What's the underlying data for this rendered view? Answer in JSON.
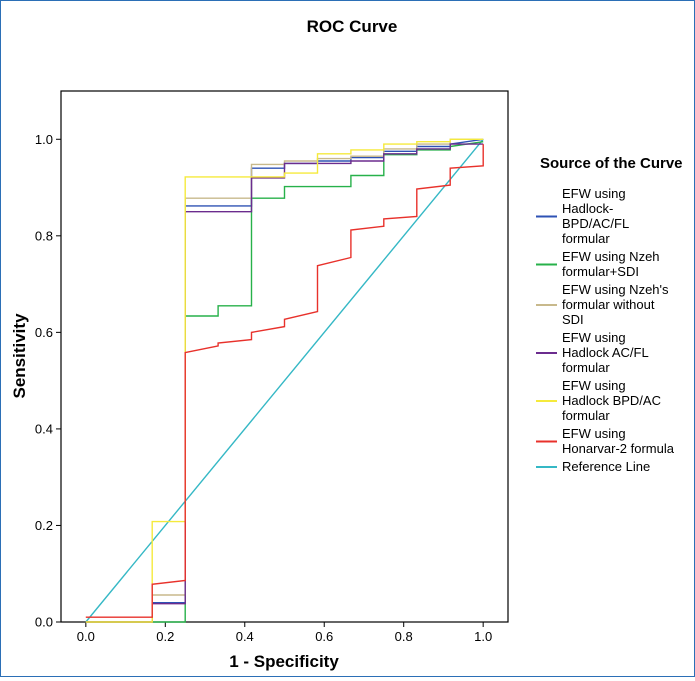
{
  "chart_data": {
    "type": "line",
    "title": "ROC Curve",
    "xlabel": "1 - Specificity",
    "ylabel": "Sensitivity",
    "xlim": [
      -0.0625,
      1.0625
    ],
    "ylim": [
      0.0,
      1.1
    ],
    "x_ticks": [
      "0.0",
      "0.2",
      "0.4",
      "0.6",
      "0.8",
      "1.0"
    ],
    "y_ticks": [
      "0.0",
      "0.2",
      "0.4",
      "0.6",
      "0.8",
      "1.0"
    ],
    "legend_title": "Source of the Curve",
    "legend_position": "right",
    "grid": false,
    "series": [
      {
        "name": "EFW using Hadlock-BPD/AC/FL formular",
        "legend_lines": [
          "EFW using",
          "Hadlock-",
          "BPD/AC/FL",
          "formular"
        ],
        "color": "#2e52b4",
        "x": [
          0,
          0.167,
          0.167,
          0.25,
          0.25,
          0.417,
          0.417,
          0.5,
          0.5,
          0.583,
          0.583,
          0.667,
          0.667,
          0.75,
          0.75,
          0.833,
          0.833,
          0.917,
          0.917,
          1.0
        ],
        "y": [
          0,
          0,
          0.04,
          0.04,
          0.862,
          0.862,
          0.94,
          0.94,
          0.95,
          0.95,
          0.955,
          0.955,
          0.962,
          0.962,
          0.975,
          0.975,
          0.985,
          0.985,
          0.99,
          1.0
        ]
      },
      {
        "name": "EFW using Nzeh formular+SDI",
        "legend_lines": [
          "EFW using Nzeh",
          "formular+SDI"
        ],
        "color": "#27b14a",
        "x": [
          0,
          0.25,
          0.25,
          0.333,
          0.333,
          0.417,
          0.417,
          0.5,
          0.5,
          0.667,
          0.667,
          0.75,
          0.75,
          0.833,
          0.833,
          0.917,
          0.917,
          1.0
        ],
        "y": [
          0,
          0,
          0.634,
          0.634,
          0.655,
          0.655,
          0.878,
          0.878,
          0.902,
          0.902,
          0.925,
          0.925,
          0.968,
          0.968,
          0.978,
          0.978,
          0.985,
          0.995
        ]
      },
      {
        "name": "EFW using Nzeh's formular without SDI",
        "legend_lines": [
          "EFW using Nzeh's",
          "formular without",
          "SDI"
        ],
        "color": "#c8b98c",
        "x": [
          0,
          0.167,
          0.167,
          0.25,
          0.25,
          0.417,
          0.417,
          0.5,
          0.5,
          0.583,
          0.583,
          0.667,
          0.667,
          0.75,
          0.75,
          0.833,
          0.833,
          0.917,
          0.917,
          1.0
        ],
        "y": [
          0,
          0,
          0.056,
          0.056,
          0.878,
          0.878,
          0.948,
          0.948,
          0.955,
          0.955,
          0.96,
          0.96,
          0.965,
          0.965,
          0.98,
          0.98,
          0.99,
          0.99,
          1.0,
          1.0
        ]
      },
      {
        "name": "EFW using Hadlock AC/FL formular",
        "legend_lines": [
          "EFW using",
          "Hadlock AC/FL",
          "formular"
        ],
        "color": "#6b2c8e",
        "x": [
          0,
          0.167,
          0.167,
          0.25,
          0.25,
          0.417,
          0.417,
          0.5,
          0.5,
          0.667,
          0.667,
          0.75,
          0.75,
          0.833,
          0.833,
          0.917,
          0.917,
          1.0
        ],
        "y": [
          0,
          0,
          0.038,
          0.038,
          0.85,
          0.85,
          0.92,
          0.92,
          0.95,
          0.95,
          0.955,
          0.955,
          0.97,
          0.97,
          0.98,
          0.98,
          0.99,
          0.99
        ]
      },
      {
        "name": "EFW using Hadlock BPD/AC formular",
        "legend_lines": [
          "EFW using",
          "Hadlock BPD/AC",
          "formular"
        ],
        "color": "#f5ea3c",
        "x": [
          0,
          0.167,
          0.167,
          0.25,
          0.25,
          0.417,
          0.417,
          0.5,
          0.5,
          0.583,
          0.583,
          0.667,
          0.667,
          0.75,
          0.75,
          0.833,
          0.833,
          0.917,
          0.917,
          1.0
        ],
        "y": [
          0,
          0,
          0.208,
          0.208,
          0.922,
          0.922,
          0.922,
          0.922,
          0.93,
          0.93,
          0.97,
          0.97,
          0.978,
          0.978,
          0.99,
          0.99,
          0.995,
          0.995,
          1.0,
          1.0
        ]
      },
      {
        "name": "EFW using Honarvar-2 formula",
        "legend_lines": [
          "EFW using",
          "Honarvar-2 formula"
        ],
        "color": "#e8312b",
        "x": [
          0,
          0.167,
          0.167,
          0.25,
          0.25,
          0.333,
          0.333,
          0.417,
          0.417,
          0.5,
          0.5,
          0.583,
          0.583,
          0.667,
          0.667,
          0.75,
          0.75,
          0.833,
          0.833,
          0.917,
          0.917,
          1.0,
          1.0
        ],
        "y": [
          0.01,
          0.01,
          0.078,
          0.086,
          0.558,
          0.572,
          0.578,
          0.585,
          0.6,
          0.612,
          0.627,
          0.643,
          0.738,
          0.755,
          0.812,
          0.82,
          0.835,
          0.84,
          0.897,
          0.905,
          0.94,
          0.945,
          0.99
        ]
      },
      {
        "name": "Reference Line",
        "legend_lines": [
          "Reference Line"
        ],
        "color": "#35b8c5",
        "x": [
          0,
          1
        ],
        "y": [
          0,
          1
        ]
      }
    ]
  }
}
